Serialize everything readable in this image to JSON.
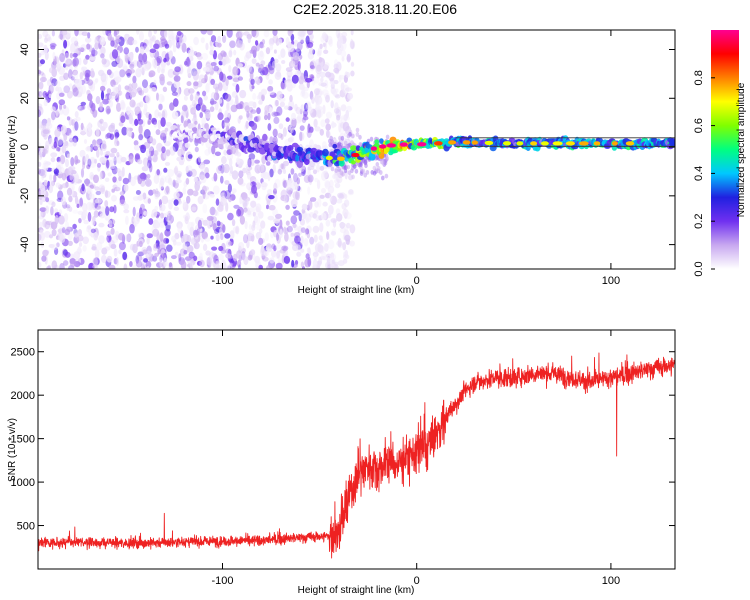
{
  "title": "C2E2.2025.318.11.20.E06",
  "colors": {
    "snr_line": "#ee2222",
    "axis": "#000000",
    "background": "#ffffff"
  },
  "chart_data": [
    {
      "type": "heatmap",
      "name": "spectrogram",
      "xlabel": "Height of straight line (km)",
      "ylabel": "Frequency (Hz)",
      "xlim": [
        -195,
        133
      ],
      "ylim": [
        -50,
        48
      ],
      "x_ticks": [
        -100,
        0,
        100
      ],
      "y_ticks": [
        -40,
        -20,
        0,
        20,
        40
      ],
      "grid": false,
      "colorbar": {
        "label": "Normalized spectral amplitude",
        "range": [
          0.0,
          1.0
        ],
        "ticks": [
          0.0,
          0.2,
          0.4,
          0.6,
          0.8
        ],
        "colormap": [
          "#ffffff",
          "#c8a8f0",
          "#7030f0",
          "#2020e0",
          "#00c8ff",
          "#00ff80",
          "#80ff00",
          "#ffff00",
          "#ff8000",
          "#ff0000",
          "#ff0090"
        ]
      },
      "features": {
        "noise_region_x": [
          -195,
          -45
        ],
        "signal_track": {
          "x": [
            -125,
            -100,
            -80,
            -60,
            -50,
            -40,
            -30,
            -20,
            -10,
            0,
            20,
            50,
            80,
            100,
            133
          ],
          "freq_hz": [
            6,
            5,
            0,
            -4,
            -4,
            -5,
            -3,
            0,
            1,
            1,
            2,
            1.5,
            1.5,
            1.5,
            1.5
          ],
          "amplitude": [
            0.15,
            0.25,
            0.35,
            0.4,
            0.45,
            0.55,
            0.7,
            0.8,
            0.9,
            0.85,
            0.55,
            0.5,
            0.55,
            0.6,
            0.5
          ]
        }
      }
    },
    {
      "type": "line",
      "name": "snr",
      "xlabel": "Height of straight line (km)",
      "ylabel": "SNR (10 * v/v)",
      "xlim": [
        -195,
        133
      ],
      "ylim": [
        0,
        2750
      ],
      "x_ticks": [
        -100,
        0,
        100
      ],
      "y_ticks": [
        500,
        1000,
        1500,
        2000,
        2500
      ],
      "grid": false,
      "series": [
        {
          "name": "SNR",
          "x": [
            -195,
            -180,
            -160,
            -140,
            -120,
            -100,
            -80,
            -60,
            -45,
            -40,
            -35,
            -30,
            -25,
            -20,
            -15,
            -10,
            -5,
            0,
            5,
            10,
            15,
            20,
            25,
            30,
            40,
            50,
            60,
            70,
            80,
            90,
            100,
            110,
            120,
            133
          ],
          "y": [
            300,
            310,
            300,
            300,
            310,
            320,
            330,
            360,
            380,
            420,
            800,
            1100,
            1200,
            1150,
            1250,
            1200,
            1300,
            1350,
            1400,
            1550,
            1750,
            1900,
            2050,
            2150,
            2200,
            2200,
            2250,
            2250,
            2200,
            2150,
            2200,
            2250,
            2300,
            2350
          ]
        }
      ],
      "annotations": [
        {
          "x": 103,
          "y": 1300,
          "label": "dip"
        },
        {
          "x": -130,
          "y": 640,
          "label": "spike"
        }
      ]
    }
  ]
}
